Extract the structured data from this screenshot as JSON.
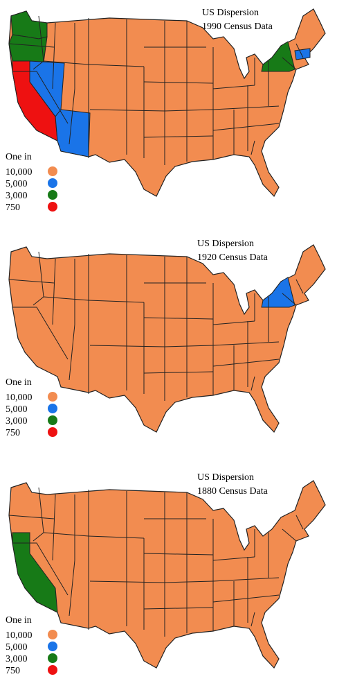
{
  "maps": [
    {
      "title": "US Dispersion",
      "subtitle": "1990 Census Data",
      "legend": {
        "heading": "One in",
        "items": [
          {
            "label": "10,000",
            "color": "#f28c50"
          },
          {
            "label": "5,000",
            "color": "#1a74e8"
          },
          {
            "label": "3,000",
            "color": "#177a17"
          },
          {
            "label": "750",
            "color": "#ee1111"
          }
        ]
      }
    },
    {
      "title": "US Dispersion",
      "subtitle": "1920 Census Data",
      "legend": {
        "heading": "One in",
        "items": [
          {
            "label": "10,000",
            "color": "#f28c50"
          },
          {
            "label": "5,000",
            "color": "#1a74e8"
          },
          {
            "label": "3,000",
            "color": "#177a17"
          },
          {
            "label": "750",
            "color": "#ee1111"
          }
        ]
      }
    },
    {
      "title": "US Dispersion",
      "subtitle": "1880 Census Data",
      "legend": {
        "heading": "One in",
        "items": [
          {
            "label": "10,000",
            "color": "#f28c50"
          },
          {
            "label": "5,000",
            "color": "#1a74e8"
          },
          {
            "label": "3,000",
            "color": "#177a17"
          },
          {
            "label": "750",
            "color": "#ee1111"
          }
        ]
      }
    }
  ]
}
